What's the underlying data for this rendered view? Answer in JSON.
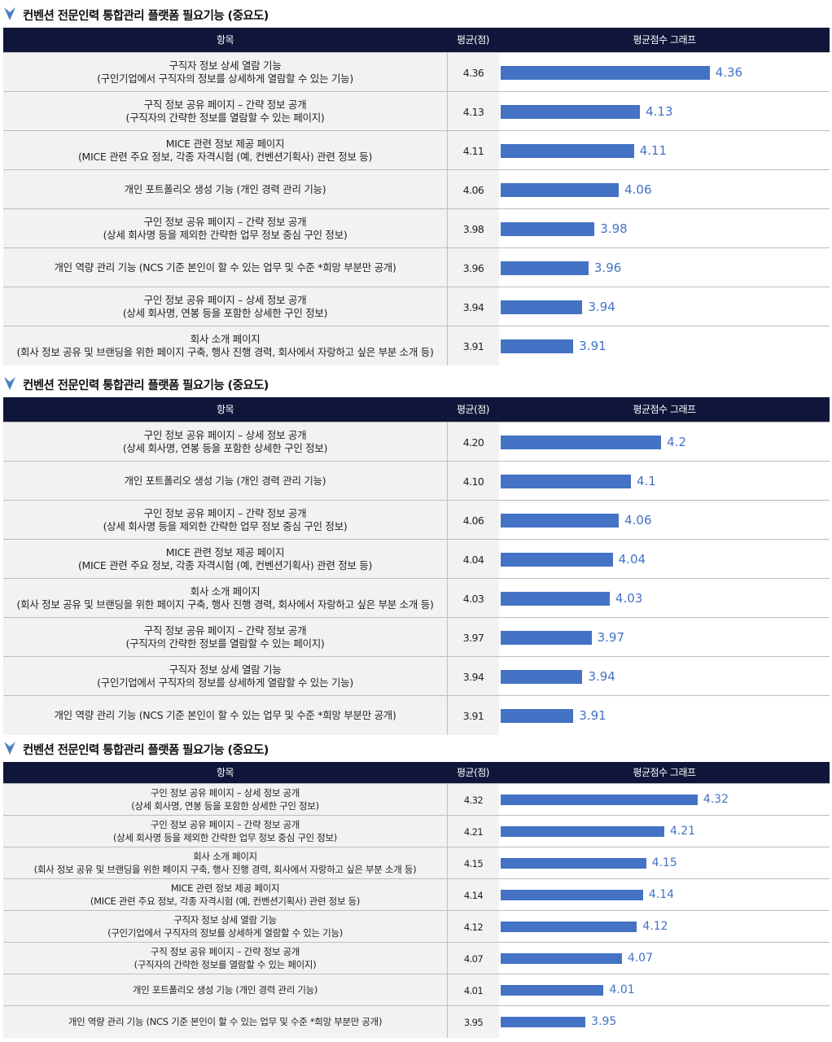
{
  "colors": {
    "header_bg": "#10163a",
    "bar": "#4472c4",
    "chevron": "#4a7fc1"
  },
  "icons": {
    "section_marker": "chevron-down-icon"
  },
  "sections": [
    {
      "title": "컨벤션 전문인력 통합관리 플랫폼 필요기능 (중요도)",
      "headers": {
        "item": "항목",
        "avg": "평균(점)",
        "graph": "평균점수 그래프"
      },
      "rows": [
        {
          "line1": "구직자 정보 상세 열람 기능",
          "line2": "(구인기업에서 구직자의 정보를 상세하게 열람할 수 있는 기능)",
          "avg": "4.36",
          "label": "4.36"
        },
        {
          "line1": "구직 정보 공유 페이지 – 간략 정보 공개",
          "line2": "(구직자의 간략한 정보를 열람할 수 있는 페이지)",
          "avg": "4.13",
          "label": "4.13"
        },
        {
          "line1": "MICE 관련 정보 제공 페이지",
          "line2": "(MICE 관련 주요 정보, 각종 자격시험 (예, 컨벤션기획사) 관련 정보 등)",
          "avg": "4.11",
          "label": "4.11"
        },
        {
          "line1": "개인 포트폴리오 생성 기능 (개인 경력 관리 기능)",
          "line2": "",
          "avg": "4.06",
          "label": "4.06"
        },
        {
          "line1": "구인 정보 공유 페이지 – 간략 정보 공개",
          "line2": "(상세 회사명 등을 제외한 간략한 업무 정보 중심 구인 정보)",
          "avg": "3.98",
          "label": "3.98"
        },
        {
          "line1": "개인 역량 관리 기능 (NCS 기준 본인이 할 수 있는 업무 및 수준 *희망 부분만 공개)",
          "line2": "",
          "avg": "3.96",
          "label": "3.96"
        },
        {
          "line1": "구인 정보 공유 페이지 – 상세 정보 공개",
          "line2": "(상세 회사명, 연봉 등을 포함한 상세한 구인 정보)",
          "avg": "3.94",
          "label": "3.94"
        },
        {
          "line1": "회사 소개 페이지",
          "line2": "(회사 정보 공유 및 브랜딩을 위한 페이지 구축, 행사 진행 경력, 회사에서 자랑하고 싶은 부분 소개 등)",
          "avg": "3.91",
          "label": "3.91"
        }
      ]
    },
    {
      "title": "컨벤션 전문인력 통합관리 플랫폼 필요기능 (중요도)",
      "headers": {
        "item": "항목",
        "avg": "평균(점)",
        "graph": "평균점수 그래프"
      },
      "rows": [
        {
          "line1": "구인 정보 공유 페이지 – 상세 정보 공개",
          "line2": "(상세 회사명, 연봉 등을 포함한 상세한 구인 정보)",
          "avg": "4.20",
          "label": "4.2"
        },
        {
          "line1": "개인 포트폴리오 생성 기능 (개인 경력 관리 기능)",
          "line2": "",
          "avg": "4.10",
          "label": "4.1"
        },
        {
          "line1": "구인 정보 공유 페이지 – 간략 정보 공개",
          "line2": "(상세 회사명 등을 제외한 간략한 업무 정보 중심 구인 정보)",
          "avg": "4.06",
          "label": "4.06"
        },
        {
          "line1": "MICE 관련 정보 제공 페이지",
          "line2": "(MICE 관련 주요 정보, 각종 자격시험 (예, 컨벤션기획사) 관련 정보 등)",
          "avg": "4.04",
          "label": "4.04"
        },
        {
          "line1": "회사 소개 페이지",
          "line2": "(회사 정보 공유 및 브랜딩을 위한 페이지 구축, 행사 진행 경력, 회사에서 자랑하고 싶은 부분 소개 등)",
          "avg": "4.03",
          "label": "4.03"
        },
        {
          "line1": "구직 정보 공유 페이지 – 간략 정보 공개",
          "line2": "(구직자의 간략한 정보를 열람할 수 있는 페이지)",
          "avg": "3.97",
          "label": "3.97"
        },
        {
          "line1": "구직자 정보 상세 열람 기능",
          "line2": "(구인기업에서 구직자의 정보를 상세하게 열람할 수 있는 기능)",
          "avg": "3.94",
          "label": "3.94"
        },
        {
          "line1": "개인 역량 관리 기능 (NCS 기준 본인이 할 수 있는 업무 및 수준 *희망 부분만 공개)",
          "line2": "",
          "avg": "3.91",
          "label": "3.91"
        }
      ]
    },
    {
      "title": "컨벤션 전문인력 통합관리 플랫폼 필요기능 (중요도)",
      "headers": {
        "item": "항목",
        "avg": "평균(점)",
        "graph": "평균점수 그래프"
      },
      "rows": [
        {
          "line1": "구인 정보 공유 페이지 – 상세 정보 공개",
          "line2": "(상세 회사명, 연봉 등을 포함한 상세한 구인 정보)",
          "avg": "4.32",
          "label": "4.32"
        },
        {
          "line1": "구인 정보 공유 페이지 – 간략 정보 공개",
          "line2": "(상세 회사명 등을 제외한 간략한 업무 정보 중심 구인 정보)",
          "avg": "4.21",
          "label": "4.21"
        },
        {
          "line1": "회사 소개 페이지",
          "line2": "(회사 정보 공유 및 브랜딩을 위한 페이지 구축, 행사 진행 경력, 회사에서 자랑하고 싶은 부분 소개 등)",
          "avg": "4.15",
          "label": "4.15"
        },
        {
          "line1": "MICE 관련 정보 제공 페이지",
          "line2": "(MICE 관련 주요 정보, 각종 자격시험 (예, 컨벤션기획사) 관련 정보 등)",
          "avg": "4.14",
          "label": "4.14"
        },
        {
          "line1": "구직자 정보 상세 열람 기능",
          "line2": "(구인기업에서 구직자의 정보를 상세하게 열람할 수 있는 기능)",
          "avg": "4.12",
          "label": "4.12"
        },
        {
          "line1": "구직 정보 공유 페이지 – 간략 정보 공개",
          "line2": "(구직자의 간략한 정보를 열람할 수 있는 페이지)",
          "avg": "4.07",
          "label": "4.07"
        },
        {
          "line1": "개인 포트폴리오 생성 기능 (개인 경력 관리 기능)",
          "line2": "",
          "avg": "4.01",
          "label": "4.01"
        },
        {
          "line1": "개인 역량 관리 기능 (NCS 기준 본인이 할 수 있는 업무 및 수준 *희망 부분만 공개)",
          "line2": "",
          "avg": "3.95",
          "label": "3.95"
        }
      ]
    }
  ],
  "chart_data": [
    {
      "type": "bar",
      "orientation": "horizontal",
      "title": "컨벤션 전문인력 통합관리 플랫폼 필요기능 (중요도)",
      "categories": [
        "구직자 정보 상세 열람 기능",
        "구직 정보 공유 페이지 – 간략 정보 공개",
        "MICE 관련 정보 제공 페이지",
        "개인 포트폴리오 생성 기능 (개인 경력 관리 기능)",
        "구인 정보 공유 페이지 – 간략 정보 공개",
        "개인 역량 관리 기능 (NCS 기준 본인이 할 수 있는 업무 및 수준 *희망 부분만 공개)",
        "구인 정보 공유 페이지 – 상세 정보 공개",
        "회사 소개 페이지"
      ],
      "values": [
        4.36,
        4.13,
        4.11,
        4.06,
        3.98,
        3.96,
        3.94,
        3.91
      ],
      "xlim": [
        3.5,
        4.5
      ],
      "grid": false
    },
    {
      "type": "bar",
      "orientation": "horizontal",
      "title": "컨벤션 전문인력 통합관리 플랫폼 필요기능 (중요도)",
      "categories": [
        "구인 정보 공유 페이지 – 상세 정보 공개",
        "개인 포트폴리오 생성 기능 (개인 경력 관리 기능)",
        "구인 정보 공유 페이지 – 간략 정보 공개",
        "MICE 관련 정보 제공 페이지",
        "회사 소개 페이지",
        "구직 정보 공유 페이지 – 간략 정보 공개",
        "구직자 정보 상세 열람 기능",
        "개인 역량 관리 기능 (NCS 기준 본인이 할 수 있는 업무 및 수준 *희망 부분만 공개)"
      ],
      "values": [
        4.2,
        4.1,
        4.06,
        4.04,
        4.03,
        3.97,
        3.94,
        3.91
      ],
      "xlim": [
        3.5,
        4.5
      ],
      "grid": false
    },
    {
      "type": "bar",
      "orientation": "horizontal",
      "title": "컨벤션 전문인력 통합관리 플랫폼 필요기능 (중요도)",
      "categories": [
        "구인 정보 공유 페이지 – 상세 정보 공개",
        "구인 정보 공유 페이지 – 간략 정보 공개",
        "회사 소개 페이지",
        "MICE 관련 정보 제공 페이지",
        "구직자 정보 상세 열람 기능",
        "구직 정보 공유 페이지 – 간략 정보 공개",
        "개인 포트폴리오 생성 기능 (개인 경력 관리 기능)",
        "개인 역량 관리 기능 (NCS 기준 본인이 할 수 있는 업무 및 수준 *희망 부분만 공개)"
      ],
      "values": [
        4.32,
        4.21,
        4.15,
        4.14,
        4.12,
        4.07,
        4.01,
        3.95
      ],
      "xlim": [
        3.5,
        4.5
      ],
      "grid": false
    }
  ]
}
